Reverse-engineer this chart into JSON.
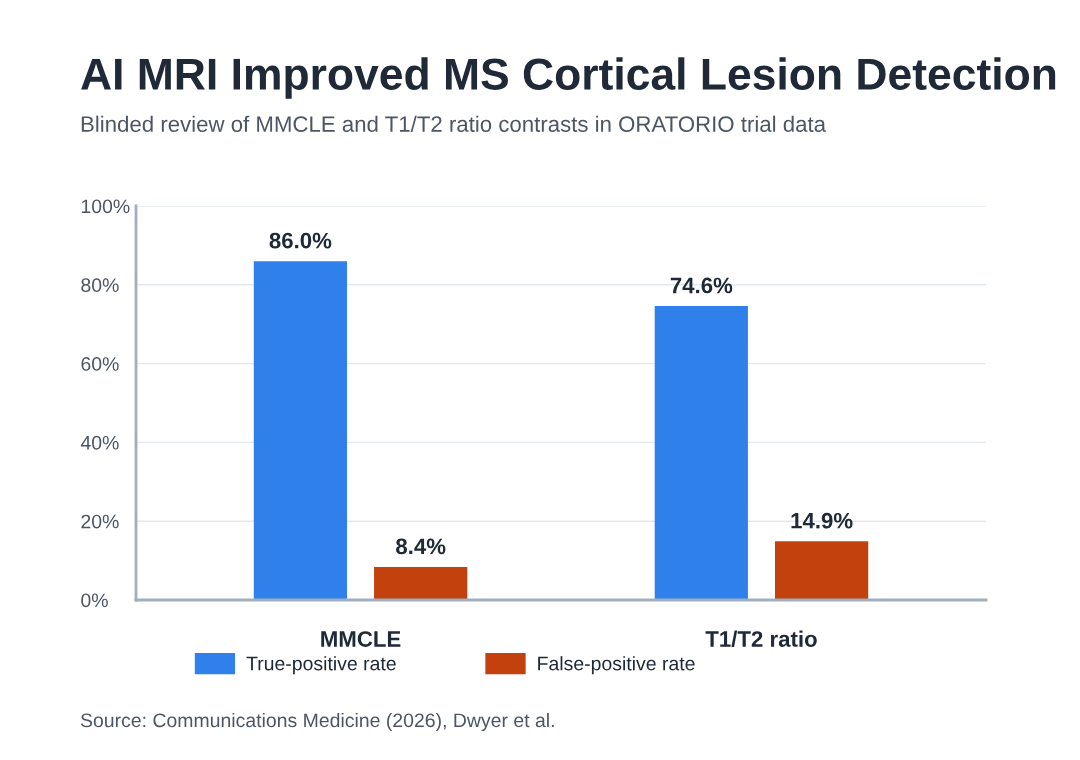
{
  "chart_data": {
    "type": "bar",
    "title": "AI MRI Improved MS Cortical Lesion Detection",
    "subtitle": "Blinded review of MMCLE and T1/T2 ratio contrasts in ORATORIO trial data",
    "categories": [
      "MMCLE",
      "T1/T2 ratio"
    ],
    "series": [
      {
        "name": "True-positive rate",
        "color": "#2f80ea",
        "values": [
          86.0,
          74.6
        ],
        "value_labels": [
          "86.0%",
          "74.6%"
        ]
      },
      {
        "name": "False-positive rate",
        "color": "#c2410c",
        "values": [
          8.4,
          14.9
        ],
        "value_labels": [
          "8.4%",
          "14.9%"
        ]
      }
    ],
    "ylim": [
      0,
      100
    ],
    "yticks": [
      {
        "value": 0,
        "label": "0%"
      },
      {
        "value": 20,
        "label": "20%"
      },
      {
        "value": 40,
        "label": "40%"
      },
      {
        "value": 60,
        "label": "60%"
      },
      {
        "value": 80,
        "label": "80%"
      },
      {
        "value": 100,
        "label": "100%"
      }
    ],
    "grid": "y",
    "legend": "bottom",
    "annotations": [
      "Source: Communications Medicine (2026), Dwyer et al."
    ]
  }
}
